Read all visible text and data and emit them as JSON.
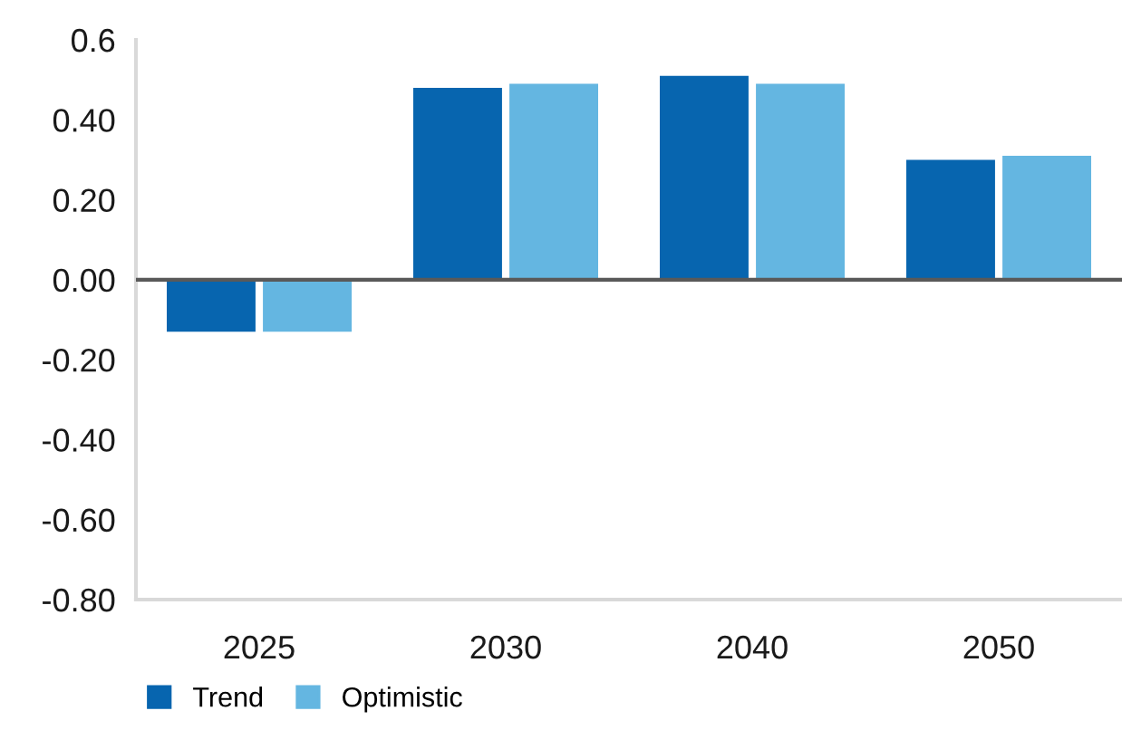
{
  "chart_data": {
    "type": "bar",
    "categories": [
      "2025",
      "2030",
      "2040",
      "2050"
    ],
    "series": [
      {
        "name": "Trend",
        "color": "#0765af",
        "values": [
          -0.13,
          0.48,
          0.51,
          0.3
        ]
      },
      {
        "name": "Optimistic",
        "color": "#64b6e1",
        "values": [
          -0.13,
          0.49,
          0.49,
          0.31
        ]
      }
    ],
    "ylim": [
      -0.8,
      0.6
    ],
    "yticks": [
      {
        "value": -0.8,
        "label": "-0.80"
      },
      {
        "value": -0.6,
        "label": "-0.60"
      },
      {
        "value": -0.4,
        "label": "-0.40"
      },
      {
        "value": -0.2,
        "label": "-0.20"
      },
      {
        "value": 0,
        "label": "0.00"
      },
      {
        "value": 0.2,
        "label": "0.20"
      },
      {
        "value": 0.4,
        "label": "0.40"
      },
      0.6
    ],
    "ref_lines": [
      {
        "axis": "y",
        "value": 0,
        "color": "#595959"
      }
    ],
    "grid": false,
    "legend": "bottom left"
  }
}
